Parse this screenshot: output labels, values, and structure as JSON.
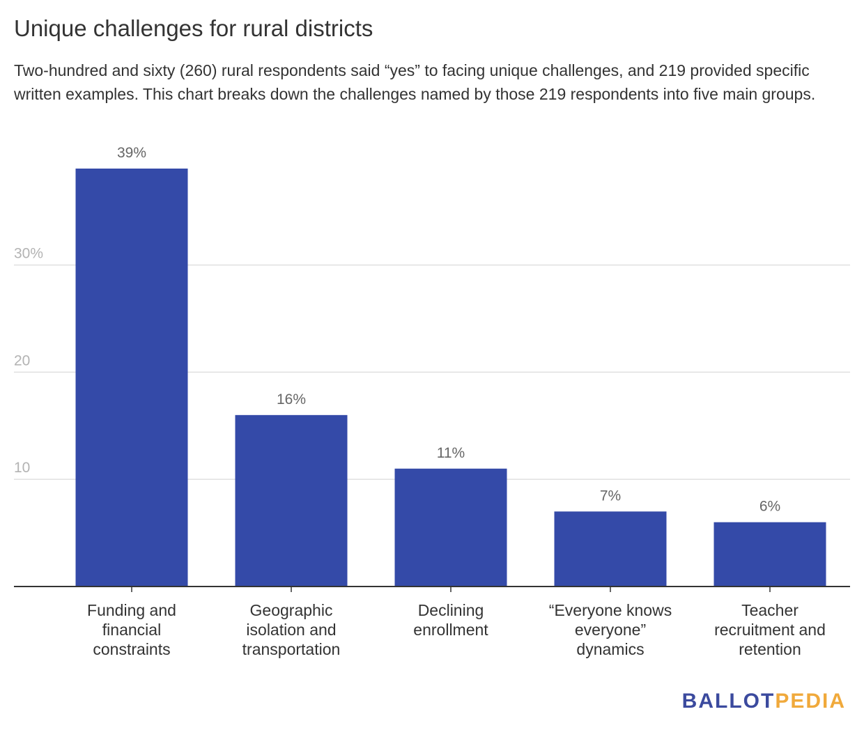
{
  "header": {
    "title": "Unique challenges for rural districts",
    "subtitle": "Two-hundred and sixty (260) rural respondents said “yes” to facing unique challenges, and 219 provided specific written examples. This chart breaks down the challenges named by those 219 respondents into five main groups."
  },
  "brand": {
    "part1": "BALLOT",
    "part2": "PEDIA",
    "color1": "#3b4a9e",
    "color2": "#f0a93b"
  },
  "chart_data": {
    "type": "bar",
    "title": "Unique challenges for rural districts",
    "xlabel": "",
    "ylabel": "",
    "categories": [
      [
        "Funding and",
        "financial",
        "constraints"
      ],
      [
        "Geographic",
        "isolation and",
        "transportation"
      ],
      [
        "Declining",
        "enrollment"
      ],
      [
        "“Everyone knows",
        "everyone”",
        "dynamics"
      ],
      [
        "Teacher",
        "recruitment and",
        "retention"
      ]
    ],
    "values": [
      39,
      16,
      11,
      7,
      6
    ],
    "value_labels": [
      "39%",
      "16%",
      "11%",
      "7%",
      "6%"
    ],
    "ylim": [
      0,
      39
    ],
    "yticks": [
      10,
      20,
      30
    ],
    "ytick_labels": [
      "10",
      "20",
      "30%"
    ],
    "grid": true,
    "bar_color": "#344aa8",
    "grid_color": "#e0e0e0",
    "axis_color": "#333333"
  }
}
